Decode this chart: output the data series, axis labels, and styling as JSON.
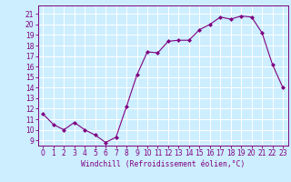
{
  "x": [
    0,
    1,
    2,
    3,
    4,
    5,
    6,
    7,
    8,
    9,
    10,
    11,
    12,
    13,
    14,
    15,
    16,
    17,
    18,
    19,
    20,
    21,
    22,
    23
  ],
  "y": [
    11.5,
    10.5,
    10.0,
    10.7,
    10.0,
    9.5,
    8.8,
    9.3,
    12.2,
    15.2,
    17.4,
    17.3,
    18.4,
    18.5,
    18.5,
    19.5,
    20.0,
    20.7,
    20.5,
    20.8,
    20.7,
    19.2,
    16.2,
    14.0
  ],
  "line_color": "#800080",
  "marker": "D",
  "marker_size": 2.0,
  "bg_color": "#cceeff",
  "grid_color": "#ffffff",
  "xlabel": "Windchill (Refroidissement éolien,°C)",
  "ylabel_ticks": [
    9,
    10,
    11,
    12,
    13,
    14,
    15,
    16,
    17,
    18,
    19,
    20,
    21
  ],
  "ylim": [
    8.5,
    21.8
  ],
  "xlim": [
    -0.5,
    23.5
  ],
  "tick_fontsize": 5.5,
  "label_fontsize": 5.8
}
